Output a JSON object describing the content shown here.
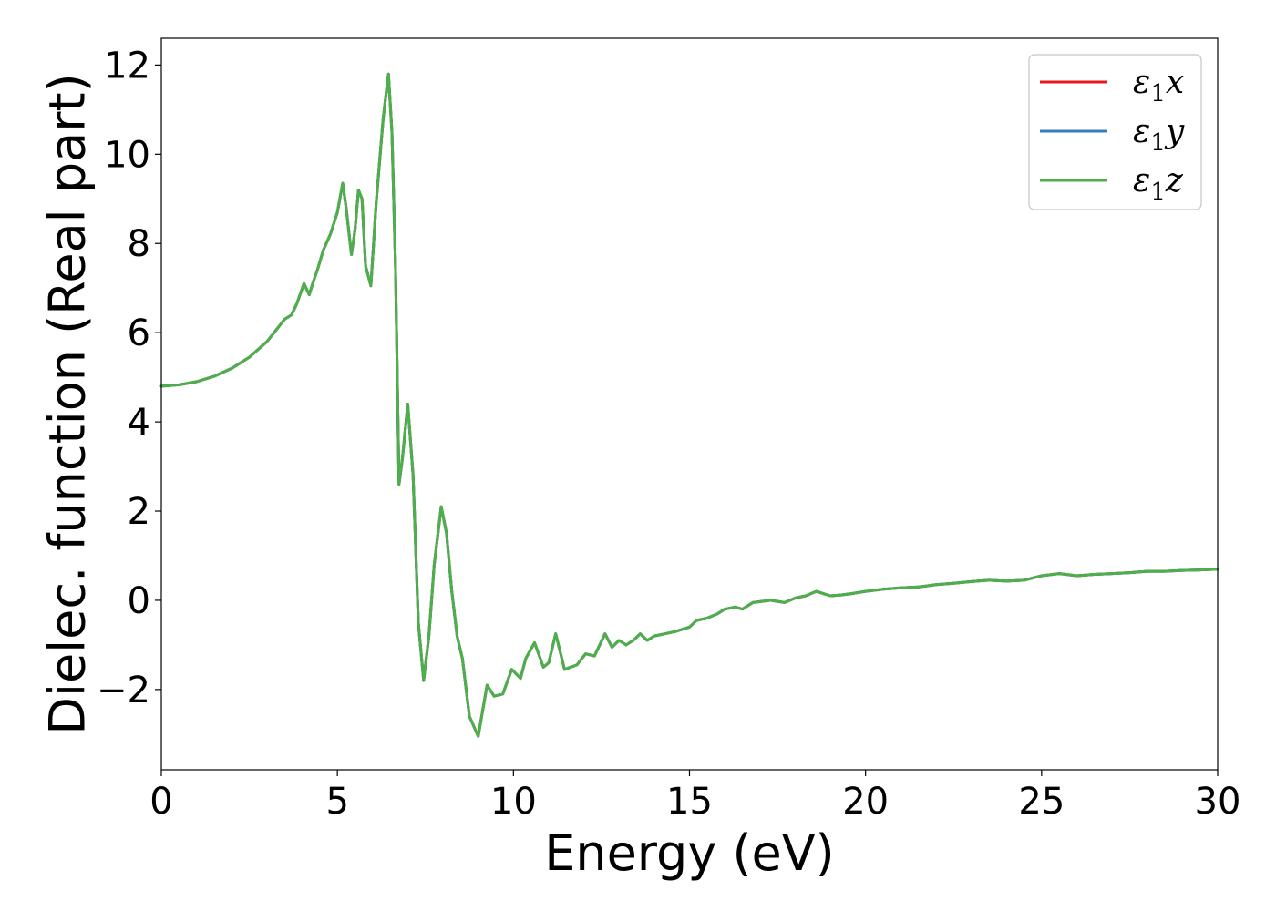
{
  "chart_data": {
    "type": "line",
    "title": "",
    "xlabel": "Energy (eV)",
    "ylabel": "Dielec. function (Real part)",
    "xlim": [
      0,
      30
    ],
    "ylim": [
      -3.8,
      12.6
    ],
    "xticks": [
      0,
      5,
      10,
      15,
      20,
      25,
      30
    ],
    "yticks": [
      -2,
      0,
      2,
      4,
      6,
      8,
      10,
      12
    ],
    "grid": false,
    "legend_position": "top-right",
    "series": [
      {
        "name": "ε1x",
        "legend_base": "ε",
        "legend_sub": "1",
        "legend_suffix": "x",
        "color": "#e41a1c",
        "x": [
          0,
          0.5,
          1,
          1.5,
          2,
          2.5,
          3,
          3.3,
          3.5,
          3.7,
          3.85,
          4.05,
          4.2,
          4.3,
          4.45,
          4.6,
          4.8,
          5.0,
          5.15,
          5.25,
          5.4,
          5.5,
          5.6,
          5.7,
          5.8,
          5.95,
          6.1,
          6.3,
          6.45,
          6.55,
          6.65,
          6.75,
          6.85,
          7.0,
          7.15,
          7.3,
          7.45,
          7.6,
          7.75,
          7.95,
          8.1,
          8.25,
          8.4,
          8.55,
          8.75,
          9.0,
          9.25,
          9.45,
          9.7,
          9.95,
          10.2,
          10.35,
          10.6,
          10.85,
          11.0,
          11.2,
          11.45,
          11.8,
          12.05,
          12.3,
          12.6,
          12.8,
          13.0,
          13.2,
          13.4,
          13.6,
          13.8,
          14.0,
          14.3,
          14.6,
          15.0,
          15.2,
          15.5,
          15.8,
          16.0,
          16.3,
          16.5,
          16.8,
          17.0,
          17.3,
          17.7,
          18.0,
          18.3,
          18.6,
          18.8,
          19.0,
          19.3,
          19.6,
          20.0,
          20.5,
          21.0,
          21.5,
          22.0,
          22.5,
          23.0,
          23.5,
          24.0,
          24.5,
          25.0,
          25.5,
          26.0,
          26.5,
          27.0,
          27.5,
          28.0,
          28.5,
          29.0,
          29.5,
          30.0
        ],
        "y": [
          4.8,
          4.83,
          4.9,
          5.02,
          5.2,
          5.45,
          5.8,
          6.1,
          6.3,
          6.4,
          6.65,
          7.1,
          6.85,
          7.1,
          7.45,
          7.85,
          8.2,
          8.7,
          9.35,
          8.8,
          7.75,
          8.3,
          9.2,
          9.0,
          7.5,
          7.05,
          8.9,
          10.8,
          11.8,
          10.5,
          7.5,
          2.6,
          3.2,
          4.4,
          2.8,
          -0.5,
          -1.8,
          -0.8,
          0.8,
          2.1,
          1.5,
          0.2,
          -0.8,
          -1.3,
          -2.6,
          -3.05,
          -1.9,
          -2.15,
          -2.1,
          -1.55,
          -1.75,
          -1.3,
          -0.95,
          -1.5,
          -1.4,
          -0.75,
          -1.55,
          -1.45,
          -1.2,
          -1.25,
          -0.75,
          -1.05,
          -0.9,
          -1.0,
          -0.9,
          -0.75,
          -0.9,
          -0.8,
          -0.75,
          -0.7,
          -0.6,
          -0.45,
          -0.4,
          -0.3,
          -0.2,
          -0.15,
          -0.2,
          -0.05,
          -0.03,
          0.0,
          -0.05,
          0.05,
          0.1,
          0.2,
          0.15,
          0.1,
          0.12,
          0.15,
          0.2,
          0.25,
          0.28,
          0.3,
          0.35,
          0.38,
          0.42,
          0.45,
          0.43,
          0.45,
          0.55,
          0.6,
          0.55,
          0.58,
          0.6,
          0.62,
          0.65,
          0.65,
          0.67,
          0.68,
          0.7
        ]
      },
      {
        "name": "ε1y",
        "legend_base": "ε",
        "legend_sub": "1",
        "legend_suffix": "y",
        "color": "#377eb8",
        "x": [
          0,
          0.5,
          1,
          1.5,
          2,
          2.5,
          3,
          3.3,
          3.5,
          3.7,
          3.85,
          4.05,
          4.2,
          4.3,
          4.45,
          4.6,
          4.8,
          5.0,
          5.15,
          5.25,
          5.4,
          5.5,
          5.6,
          5.7,
          5.8,
          5.95,
          6.1,
          6.3,
          6.45,
          6.55,
          6.65,
          6.75,
          6.85,
          7.0,
          7.15,
          7.3,
          7.45,
          7.6,
          7.75,
          7.95,
          8.1,
          8.25,
          8.4,
          8.55,
          8.75,
          9.0,
          9.25,
          9.45,
          9.7,
          9.95,
          10.2,
          10.35,
          10.6,
          10.85,
          11.0,
          11.2,
          11.45,
          11.8,
          12.05,
          12.3,
          12.6,
          12.8,
          13.0,
          13.2,
          13.4,
          13.6,
          13.8,
          14.0,
          14.3,
          14.6,
          15.0,
          15.2,
          15.5,
          15.8,
          16.0,
          16.3,
          16.5,
          16.8,
          17.0,
          17.3,
          17.7,
          18.0,
          18.3,
          18.6,
          18.8,
          19.0,
          19.3,
          19.6,
          20.0,
          20.5,
          21.0,
          21.5,
          22.0,
          22.5,
          23.0,
          23.5,
          24.0,
          24.5,
          25.0,
          25.5,
          26.0,
          26.5,
          27.0,
          27.5,
          28.0,
          28.5,
          29.0,
          29.5,
          30.0
        ],
        "y": [
          4.8,
          4.83,
          4.9,
          5.02,
          5.2,
          5.45,
          5.8,
          6.1,
          6.3,
          6.4,
          6.65,
          7.1,
          6.85,
          7.1,
          7.45,
          7.85,
          8.2,
          8.7,
          9.35,
          8.8,
          7.75,
          8.3,
          9.2,
          9.0,
          7.5,
          7.05,
          8.9,
          10.8,
          11.8,
          10.5,
          7.5,
          2.6,
          3.2,
          4.4,
          2.8,
          -0.5,
          -1.8,
          -0.8,
          0.8,
          2.1,
          1.5,
          0.2,
          -0.8,
          -1.3,
          -2.6,
          -3.05,
          -1.9,
          -2.15,
          -2.1,
          -1.55,
          -1.75,
          -1.3,
          -0.95,
          -1.5,
          -1.4,
          -0.75,
          -1.55,
          -1.45,
          -1.2,
          -1.25,
          -0.75,
          -1.05,
          -0.9,
          -1.0,
          -0.9,
          -0.75,
          -0.9,
          -0.8,
          -0.75,
          -0.7,
          -0.6,
          -0.45,
          -0.4,
          -0.3,
          -0.2,
          -0.15,
          -0.2,
          -0.05,
          -0.03,
          0.0,
          -0.05,
          0.05,
          0.1,
          0.2,
          0.15,
          0.1,
          0.12,
          0.15,
          0.2,
          0.25,
          0.28,
          0.3,
          0.35,
          0.38,
          0.42,
          0.45,
          0.43,
          0.45,
          0.55,
          0.6,
          0.55,
          0.58,
          0.6,
          0.62,
          0.65,
          0.65,
          0.67,
          0.68,
          0.7
        ]
      },
      {
        "name": "ε1z",
        "legend_base": "ε",
        "legend_sub": "1",
        "legend_suffix": "z",
        "color": "#4daf4a",
        "x": [
          0,
          0.5,
          1,
          1.5,
          2,
          2.5,
          3,
          3.3,
          3.5,
          3.7,
          3.85,
          4.05,
          4.2,
          4.3,
          4.45,
          4.6,
          4.8,
          5.0,
          5.15,
          5.25,
          5.4,
          5.5,
          5.6,
          5.7,
          5.8,
          5.95,
          6.1,
          6.3,
          6.45,
          6.55,
          6.65,
          6.75,
          6.85,
          7.0,
          7.15,
          7.3,
          7.45,
          7.6,
          7.75,
          7.95,
          8.1,
          8.25,
          8.4,
          8.55,
          8.75,
          9.0,
          9.25,
          9.45,
          9.7,
          9.95,
          10.2,
          10.35,
          10.6,
          10.85,
          11.0,
          11.2,
          11.45,
          11.8,
          12.05,
          12.3,
          12.6,
          12.8,
          13.0,
          13.2,
          13.4,
          13.6,
          13.8,
          14.0,
          14.3,
          14.6,
          15.0,
          15.2,
          15.5,
          15.8,
          16.0,
          16.3,
          16.5,
          16.8,
          17.0,
          17.3,
          17.7,
          18.0,
          18.3,
          18.6,
          18.8,
          19.0,
          19.3,
          19.6,
          20.0,
          20.5,
          21.0,
          21.5,
          22.0,
          22.5,
          23.0,
          23.5,
          24.0,
          24.5,
          25.0,
          25.5,
          26.0,
          26.5,
          27.0,
          27.5,
          28.0,
          28.5,
          29.0,
          29.5,
          30.0
        ],
        "y": [
          4.8,
          4.83,
          4.9,
          5.02,
          5.2,
          5.45,
          5.8,
          6.1,
          6.3,
          6.4,
          6.65,
          7.1,
          6.85,
          7.1,
          7.45,
          7.85,
          8.2,
          8.7,
          9.35,
          8.8,
          7.75,
          8.3,
          9.2,
          9.0,
          7.5,
          7.05,
          8.9,
          10.8,
          11.8,
          10.5,
          7.5,
          2.6,
          3.2,
          4.4,
          2.8,
          -0.5,
          -1.8,
          -0.8,
          0.8,
          2.1,
          1.5,
          0.2,
          -0.8,
          -1.3,
          -2.6,
          -3.05,
          -1.9,
          -2.15,
          -2.1,
          -1.55,
          -1.75,
          -1.3,
          -0.95,
          -1.5,
          -1.4,
          -0.75,
          -1.55,
          -1.45,
          -1.2,
          -1.25,
          -0.75,
          -1.05,
          -0.9,
          -1.0,
          -0.9,
          -0.75,
          -0.9,
          -0.8,
          -0.75,
          -0.7,
          -0.6,
          -0.45,
          -0.4,
          -0.3,
          -0.2,
          -0.15,
          -0.2,
          -0.05,
          -0.03,
          0.0,
          -0.05,
          0.05,
          0.1,
          0.2,
          0.15,
          0.1,
          0.12,
          0.15,
          0.2,
          0.25,
          0.28,
          0.3,
          0.35,
          0.38,
          0.42,
          0.45,
          0.43,
          0.45,
          0.55,
          0.6,
          0.55,
          0.58,
          0.6,
          0.62,
          0.65,
          0.65,
          0.67,
          0.68,
          0.7
        ]
      }
    ]
  }
}
